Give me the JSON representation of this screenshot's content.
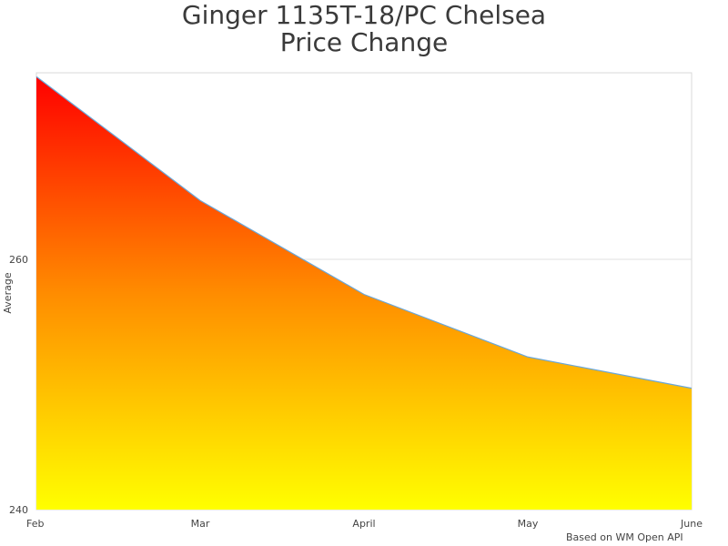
{
  "title": {
    "line1": "Ginger 1135T-18/PC Chelsea",
    "line2": "Price Change"
  },
  "credit": "Based on WM Open API",
  "chart_data": {
    "type": "area",
    "title": "Ginger 1135T-18/PC Chelsea Price Change",
    "xlabel": "",
    "ylabel": "Average",
    "categories": [
      "Feb",
      "Mar",
      "April",
      "May",
      "June"
    ],
    "series": [
      {
        "name": "Average",
        "values": [
          274.6,
          264.7,
          257.2,
          252.2,
          249.7
        ]
      }
    ],
    "ylim": [
      240,
      275
    ],
    "yticks": [
      240,
      260
    ],
    "grid": true,
    "legend": "none",
    "fill_gradient": {
      "top": "#ff0000",
      "middle": "#ff8c00",
      "bottom": "#ffff00"
    },
    "line_color": "#6aa7d8",
    "annotations": [
      "Based on WM Open API"
    ]
  }
}
